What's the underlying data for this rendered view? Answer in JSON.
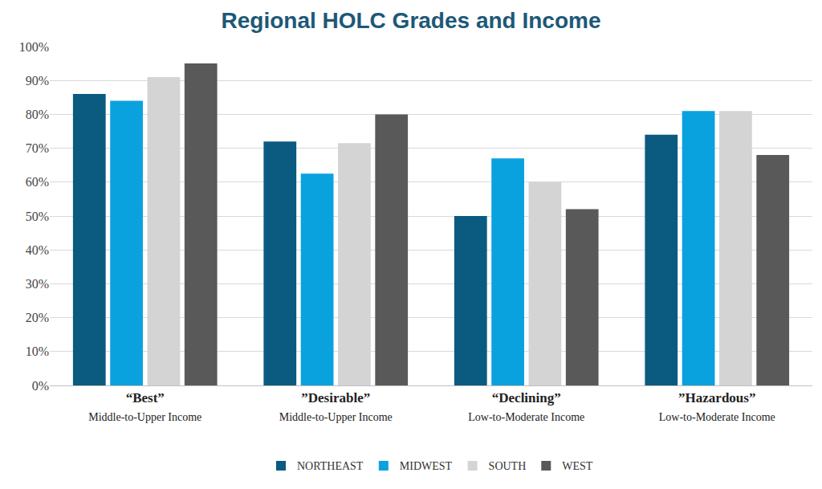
{
  "chart_data": {
    "type": "bar",
    "title": "Regional HOLC Grades and Income",
    "categories": [
      "“Best”\nMiddle-to-Upper Income",
      "”Desirable”\nMiddle-to-Upper Income",
      "“Declining”\nLow-to-Moderate Income",
      "”Hazardous”\nLow-to-Moderate Income"
    ],
    "series": [
      {
        "name": "NORTHEAST",
        "color": "#0b5a80",
        "values": [
          86,
          72,
          50,
          74
        ]
      },
      {
        "name": "MIDWEST",
        "color": "#0aa2de",
        "values": [
          84,
          62.5,
          67,
          81
        ]
      },
      {
        "name": "SOUTH",
        "color": "#d4d4d4",
        "values": [
          91,
          71.5,
          60,
          81
        ]
      },
      {
        "name": "WEST",
        "color": "#595959",
        "values": [
          95,
          80,
          52,
          68
        ]
      }
    ],
    "ylim": [
      0,
      100
    ],
    "yticks": [
      {
        "value": 0,
        "label": "0%"
      },
      {
        "value": 10,
        "label": "10%"
      },
      {
        "value": 20,
        "label": "20%"
      },
      {
        "value": 30,
        "label": "30%"
      },
      {
        "value": 40,
        "label": "40%"
      },
      {
        "value": 50,
        "label": "50%"
      },
      {
        "value": 60,
        "label": "60%"
      },
      {
        "value": 70,
        "label": "70%"
      },
      {
        "value": 80,
        "label": "80%"
      },
      {
        "value": 90,
        "label": "90%"
      },
      {
        "value": 100,
        "label": "100%"
      }
    ],
    "grid": true,
    "legend": "bottom"
  }
}
